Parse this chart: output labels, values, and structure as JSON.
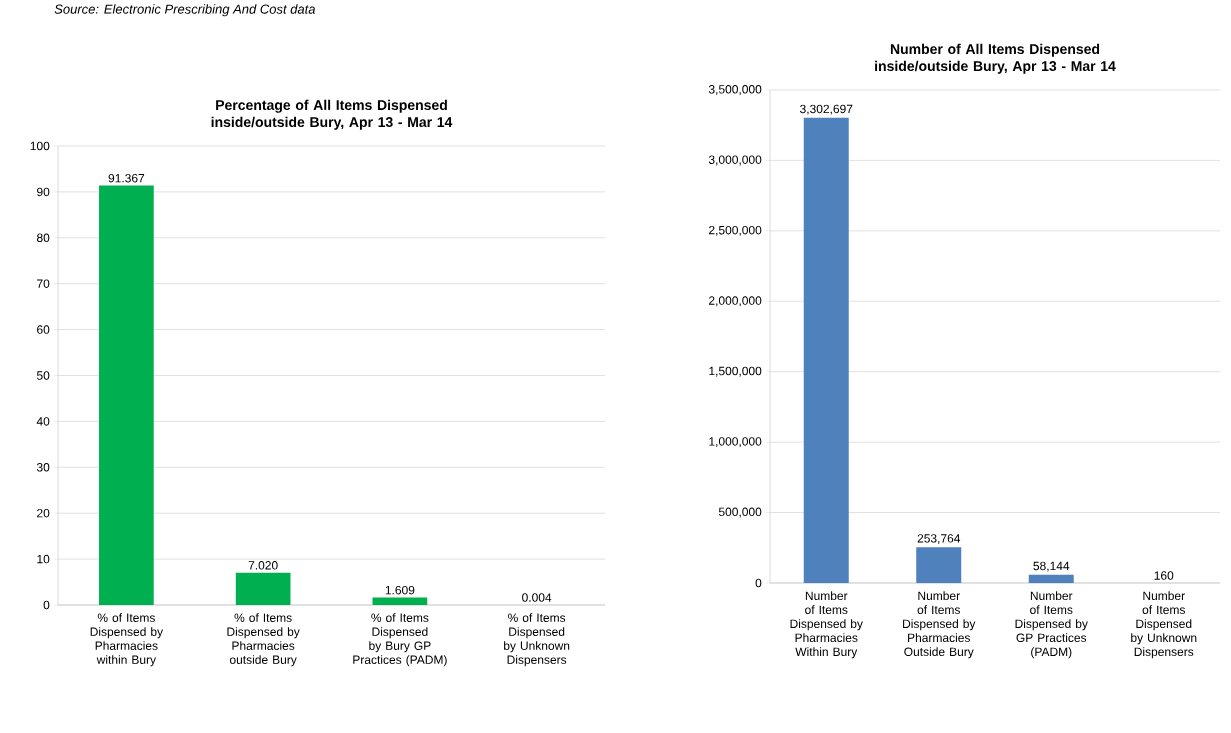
{
  "chart_data": [
    {
      "type": "bar",
      "title": "Percentage of All Items Dispensed inside/outside Bury, Apr 13 - Mar 14",
      "categories": [
        "% of Items Dispensed by Pharmacies within Bury",
        "% of Items Dispensed by Pharmacies outside Bury",
        "% of Items Dispensed by Bury GP Practices (PADM)",
        "% of Items Dispensed by Unknown Dispensers"
      ],
      "values": [
        91.367,
        7.02,
        1.609,
        0.004
      ],
      "value_labels": [
        "91.367",
        "7.020",
        "1.609",
        "0.004"
      ],
      "color": "#00b050",
      "ylim": [
        0,
        100
      ],
      "yticks": [
        0,
        10,
        20,
        30,
        40,
        50,
        60,
        70,
        80,
        90,
        100
      ],
      "grid": "y",
      "annotations": [
        "Source: Electronic Prescribing And Cost data"
      ]
    },
    {
      "type": "bar",
      "title": "Number of All Items Dispensed inside/outside Bury, Apr 13 - Mar 14",
      "categories": [
        "Number of Items Dispensed by Pharmacies Within Bury",
        "Number of Items Dispensed by Pharmacies Outside Bury",
        "Number of Items Dispensed by GP Practices (PADM)",
        "Number of Items Dispensed by Unknown Dispensers"
      ],
      "values": [
        3302697,
        253764,
        58144,
        160
      ],
      "value_labels": [
        "3,302,697",
        "253,764",
        "58,144",
        "160"
      ],
      "color": "#4f81bd",
      "ylim": [
        0,
        3500000
      ],
      "yticks": [
        0,
        {
          "value": 500000,
          "label": "500,000"
        },
        {
          "value": 1000000,
          "label": "1,000,000"
        },
        {
          "value": 1500000,
          "label": "1,500,000"
        },
        {
          "value": 2000000,
          "label": "2,000,000"
        },
        {
          "value": 2500000,
          "label": "2,500,000"
        },
        {
          "value": 3000000,
          "label": "3,000,000"
        },
        {
          "value": 3500000,
          "label": "3,500,000"
        }
      ],
      "grid": "y"
    }
  ]
}
